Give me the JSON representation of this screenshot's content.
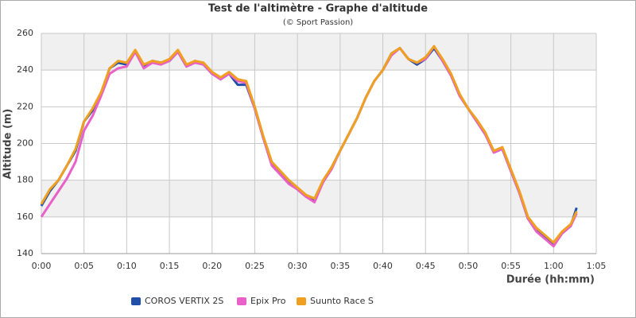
{
  "chart_data": {
    "type": "line",
    "title": "Test de l'altimètre - Graphe d'altitude",
    "subtitle": "(© Sport Passion)",
    "x_label": "Durée (hh:mm)",
    "y_label": "Altitude (m)",
    "x": [
      0,
      1,
      2,
      3,
      4,
      5,
      6,
      7,
      8,
      9,
      10,
      11,
      12,
      13,
      14,
      15,
      16,
      17,
      18,
      19,
      20,
      21,
      22,
      23,
      24,
      25,
      26,
      27,
      28,
      29,
      30,
      31,
      32,
      33,
      34,
      35,
      36,
      37,
      38,
      39,
      40,
      41,
      42,
      43,
      44,
      45,
      46,
      47,
      48,
      49,
      50,
      51,
      52,
      53,
      54,
      55,
      56,
      57,
      58,
      59,
      60,
      61,
      62,
      62.7
    ],
    "series": [
      {
        "name": "COROS VERTIX 2S",
        "color": "#1f4fa8",
        "values": [
          166,
          174,
          180,
          188,
          196,
          212,
          218,
          227,
          241,
          244,
          243,
          250,
          242,
          245,
          244,
          245,
          250,
          242,
          245,
          243,
          238,
          235,
          238,
          232,
          232,
          219,
          203,
          189,
          184,
          179,
          175,
          171,
          169,
          179,
          187,
          196,
          205,
          214,
          225,
          234,
          240,
          249,
          252,
          246,
          243,
          246,
          252,
          245,
          237,
          226,
          219,
          212,
          205,
          196,
          197,
          185,
          173,
          159,
          153,
          149,
          145,
          151,
          155,
          165
        ]
      },
      {
        "name": "Epix Pro",
        "color": "#e860c8",
        "values": [
          160,
          167,
          174,
          181,
          190,
          207,
          215,
          226,
          238,
          241,
          242,
          250,
          241,
          244,
          243,
          245,
          250,
          242,
          244,
          243,
          238,
          235,
          238,
          234,
          233,
          219,
          203,
          188,
          183,
          178,
          175,
          171,
          168,
          179,
          186,
          196,
          205,
          214,
          225,
          234,
          240,
          248,
          252,
          246,
          244,
          246,
          253,
          245,
          237,
          226,
          219,
          212,
          205,
          195,
          197,
          185,
          173,
          159,
          152,
          148,
          144,
          151,
          155,
          162
        ]
      },
      {
        "name": "Suunto Race S",
        "color": "#f0a020",
        "values": [
          167,
          175,
          180,
          188,
          197,
          212,
          219,
          228,
          241,
          245,
          244,
          251,
          243,
          245,
          244,
          246,
          251,
          243,
          245,
          244,
          239,
          236,
          239,
          235,
          234,
          220,
          204,
          190,
          185,
          180,
          176,
          172,
          170,
          180,
          187,
          196,
          205,
          214,
          225,
          234,
          240,
          249,
          252,
          246,
          244,
          247,
          253,
          246,
          238,
          227,
          219,
          213,
          206,
          196,
          198,
          186,
          174,
          160,
          154,
          150,
          146,
          152,
          156,
          163
        ]
      }
    ],
    "xlim": [
      0,
      65
    ],
    "ylim": [
      140,
      260
    ],
    "xticks": [
      {
        "value": 0,
        "label": "0:00"
      },
      {
        "value": 5,
        "label": "0:05"
      },
      {
        "value": 10,
        "label": "0:10"
      },
      {
        "value": 15,
        "label": "0:15"
      },
      {
        "value": 20,
        "label": "0:20"
      },
      {
        "value": 25,
        "label": "0:25"
      },
      {
        "value": 30,
        "label": "0:30"
      },
      {
        "value": 35,
        "label": "0:35"
      },
      {
        "value": 40,
        "label": "0:40"
      },
      {
        "value": 45,
        "label": "0:45"
      },
      {
        "value": 50,
        "label": "0:50"
      },
      {
        "value": 55,
        "label": "0:55"
      },
      {
        "value": 60,
        "label": "1:00"
      },
      {
        "value": 65,
        "label": "1:05"
      }
    ],
    "yticks": [
      140,
      160,
      180,
      200,
      220,
      240,
      260
    ],
    "grid": true
  }
}
